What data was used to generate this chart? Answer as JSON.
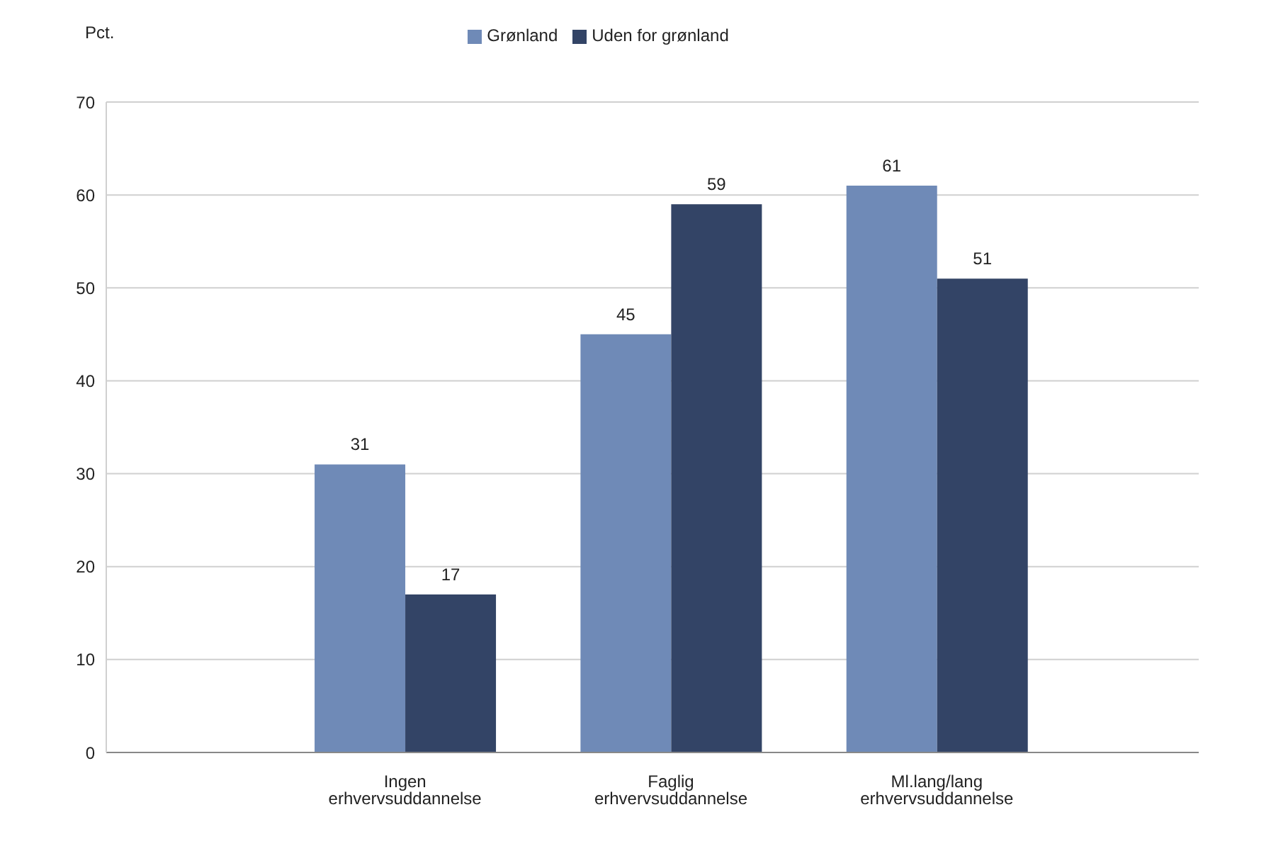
{
  "chart_data": {
    "type": "bar",
    "ylabel": "Pct.",
    "categories": [
      "Ingen erhvervsuddannelse",
      "Faglig erhvervsuddannelse",
      "Ml.lang/lang erhvervsuddannelse"
    ],
    "series": [
      {
        "name": "Grønland",
        "color": "#6f8ab7",
        "values": [
          31,
          45,
          61
        ]
      },
      {
        "name": "Uden for grønland",
        "color": "#334466",
        "values": [
          17,
          59,
          51
        ]
      }
    ],
    "ylim": [
      0,
      70
    ],
    "yticks": [
      0,
      10,
      20,
      30,
      40,
      50,
      60,
      70
    ],
    "grid": "y",
    "legend": "top",
    "data_labels": true
  }
}
